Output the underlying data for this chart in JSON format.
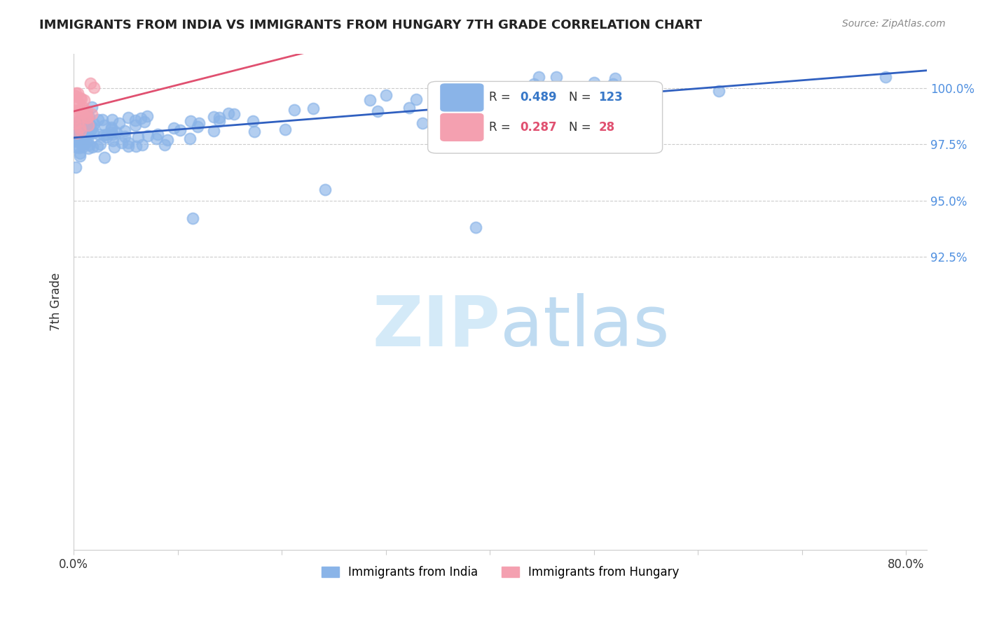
{
  "title": "IMMIGRANTS FROM INDIA VS IMMIGRANTS FROM HUNGARY 7TH GRADE CORRELATION CHART",
  "source": "Source: ZipAtlas.com",
  "ylabel": "7th Grade",
  "xlim": [
    0.0,
    0.82
  ],
  "ylim": [
    79.5,
    101.5
  ],
  "blue_R": 0.489,
  "blue_N": 123,
  "pink_R": 0.287,
  "pink_N": 28,
  "blue_color": "#8ab4e8",
  "pink_color": "#f4a0b0",
  "blue_line_color": "#3060c0",
  "pink_line_color": "#e05070",
  "legend_R_color_blue": "#3878c8",
  "legend_R_color_pink": "#e05070",
  "watermark_color_zip": "#d0e8f8",
  "watermark_color_atlas": "#b8d8f0",
  "title_color": "#222222",
  "source_color": "#888888",
  "ytick_color": "#5090e0",
  "grid_color": "#cccccc",
  "background_color": "#ffffff"
}
